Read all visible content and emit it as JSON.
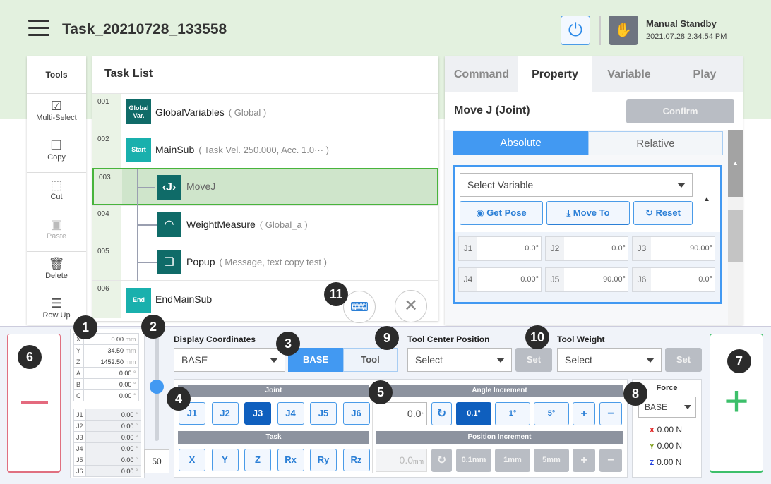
{
  "header": {
    "title": "Task_20210728_133558",
    "mode": "Manual Standby",
    "datetime": "2021.07.28 2:34:54 PM",
    "icons": {
      "menu": "hamburger-icon",
      "reset": "servo-on-icon",
      "mode": "hand-icon"
    }
  },
  "tools": {
    "title": "Tools",
    "items": [
      {
        "label": "Multi-Select",
        "enabled": true
      },
      {
        "label": "Copy",
        "enabled": true
      },
      {
        "label": "Cut",
        "enabled": true
      },
      {
        "label": "Paste",
        "enabled": false
      },
      {
        "label": "Delete",
        "enabled": true
      },
      {
        "label": "Row Up",
        "enabled": true
      }
    ]
  },
  "task_list": {
    "title": "Task List",
    "rows": [
      {
        "num": "001",
        "icon": "Global Var.",
        "name": "GlobalVariables",
        "arg": "( Global )"
      },
      {
        "num": "002",
        "icon": "Start",
        "name": "MainSub",
        "arg": "( Task Vel. 250.000, Acc. 1.0··· )"
      },
      {
        "num": "003",
        "icon": "movej-icon",
        "name": "MoveJ",
        "arg": "",
        "selected": true
      },
      {
        "num": "004",
        "icon": "gauge-icon",
        "name": "WeightMeasure",
        "arg": "( Global_a )"
      },
      {
        "num": "005",
        "icon": "popup-icon",
        "name": "Popup",
        "arg": "( Message, text copy test )"
      },
      {
        "num": "006",
        "icon": "End",
        "name": "EndMainSub",
        "arg": ""
      }
    ]
  },
  "right": {
    "tabs": [
      "Command",
      "Property",
      "Variable",
      "Play"
    ],
    "active_tab": "Property",
    "cmd_title": "Move J (Joint)",
    "confirm": "Confirm",
    "modes": [
      "Absolute",
      "Relative"
    ],
    "active_mode": "Absolute",
    "select_variable": "Select Variable",
    "get_pose": "Get Pose",
    "move_to": "Move To",
    "reset": "Reset",
    "joints": [
      {
        "l": "J1",
        "v": "0.0°"
      },
      {
        "l": "J2",
        "v": "0.0°"
      },
      {
        "l": "J3",
        "v": "90.00°"
      },
      {
        "l": "J4",
        "v": "0.00°"
      },
      {
        "l": "J5",
        "v": "90.00°"
      },
      {
        "l": "J6",
        "v": "0.0°"
      }
    ]
  },
  "bottom": {
    "badges": [
      "1",
      "2",
      "3",
      "4",
      "5",
      "6",
      "7",
      "8",
      "9",
      "10",
      "11"
    ],
    "coords": [
      {
        "l": "X",
        "v": "0.00",
        "u": "mm"
      },
      {
        "l": "Y",
        "v": "34.50",
        "u": "mm"
      },
      {
        "l": "Z",
        "v": "1452.50",
        "u": "mm"
      },
      {
        "l": "A",
        "v": "0.00",
        "u": "°"
      },
      {
        "l": "B",
        "v": "0.00",
        "u": "°"
      },
      {
        "l": "C",
        "v": "0.00",
        "u": "°"
      }
    ],
    "jcoords": [
      {
        "l": "J1",
        "v": "0.00",
        "u": "°"
      },
      {
        "l": "J2",
        "v": "0.00",
        "u": "°"
      },
      {
        "l": "J3",
        "v": "0.00",
        "u": "°"
      },
      {
        "l": "J4",
        "v": "0.00",
        "u": "°"
      },
      {
        "l": "J5",
        "v": "0.00",
        "u": "°"
      },
      {
        "l": "J6",
        "v": "0.00",
        "u": "°"
      }
    ],
    "speed": "50",
    "speed_slider_percent": 50,
    "display_coord_label": "Display Coordinates",
    "display_coord": "BASE",
    "coord_toggle": [
      "BASE",
      "Tool"
    ],
    "tcp_label": "Tool Center Position",
    "tcp_value": "Select",
    "set": "Set",
    "tw_label": "Tool Weight",
    "tw_value": "Select",
    "joint_label": "Joint",
    "joint_btns": [
      "J1",
      "J2",
      "J3",
      "J4",
      "J5",
      "J6"
    ],
    "active_joint": "J3",
    "task_label": "Task",
    "task_btns": [
      "X",
      "Y",
      "Z",
      "Rx",
      "Ry",
      "Rz"
    ],
    "angle_label": "Angle Increment",
    "angle_value": "0.0",
    "angle_unit": "°",
    "angle_btns": [
      "0.1°",
      "1°",
      "5°",
      "+",
      "−"
    ],
    "pos_label": "Position Increment",
    "pos_value": "0.0",
    "pos_unit": "mm",
    "pos_btns": [
      "0.1mm",
      "1mm",
      "5mm",
      "+",
      "−"
    ],
    "force_label": "Force",
    "force_coord": "BASE",
    "force": [
      {
        "axis": "X",
        "v": "0.00 N",
        "c": "#e02020"
      },
      {
        "axis": "Y",
        "v": "0.00 N",
        "c": "#7a9a10"
      },
      {
        "axis": "Z",
        "v": "0.00 N",
        "c": "#2040e0"
      }
    ],
    "minus": "−",
    "plus": "+"
  }
}
